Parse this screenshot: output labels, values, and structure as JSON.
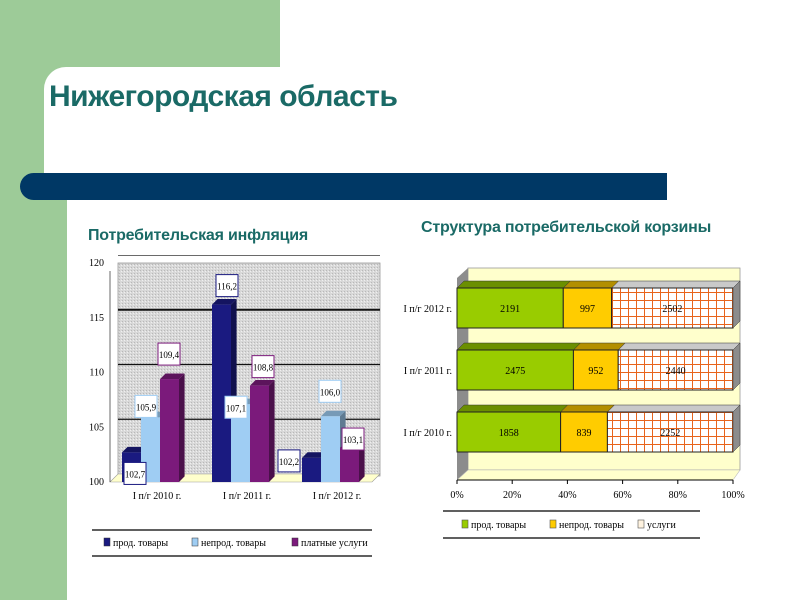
{
  "slide": {
    "title": "Нижегородская область",
    "colors": {
      "sidebar": "#9dcb98",
      "title_text": "#1a6a66",
      "title_bar": "#003865"
    }
  },
  "left_chart": {
    "heading": "Потребительская инфляция"
  },
  "right_chart": {
    "heading": "Структура потребительской корзины"
  },
  "chart_data": [
    {
      "type": "bar",
      "title": "Потребительская инфляция",
      "categories": [
        "I п/г 2010 г.",
        "I п/г 2011 г.",
        "I п/г 2012 г."
      ],
      "series": [
        {
          "name": "прод. товары",
          "color": "#1a1a80",
          "values": [
            102.7,
            116.2,
            102.2
          ],
          "labels": [
            "102,7",
            "116,2",
            "102,2"
          ]
        },
        {
          "name": "непрод. товары",
          "color": "#9fcdf3",
          "values": [
            105.9,
            107.1,
            106.0
          ],
          "labels": [
            "105,9",
            "107,1",
            "106,0"
          ]
        },
        {
          "name": "платные услуги",
          "color": "#7b1a7b",
          "values": [
            109.4,
            108.8,
            103.1
          ],
          "labels": [
            "109,4",
            "108,8",
            "103,1"
          ]
        }
      ],
      "yticks": [
        "100",
        "105",
        "110",
        "115",
        "120"
      ],
      "ylim": [
        100,
        120
      ],
      "xlabel": "",
      "ylabel": "",
      "grid": true,
      "legend_position": "bottom",
      "style": "3d-clustered"
    },
    {
      "type": "bar",
      "orientation": "horizontal",
      "stacked": "percent",
      "title": "Структура потребительской корзины",
      "categories": [
        "I п/г 2012 г.",
        "I п/г 2011 г.",
        "I п/г 2010 г."
      ],
      "series": [
        {
          "name": "прод. товары",
          "color": "#99cc00",
          "values": [
            2191,
            2475,
            1858
          ]
        },
        {
          "name": "непрод. товары",
          "color": "#ffcc00",
          "values": [
            997,
            952,
            839
          ]
        },
        {
          "name": "услуги",
          "color": "#ffffff",
          "pattern": "grid",
          "pattern_color": "#e8641c",
          "values": [
            2502,
            2440,
            2252
          ]
        }
      ],
      "xticks": [
        "0%",
        "20%",
        "40%",
        "60%",
        "80%",
        "100%"
      ],
      "xlim": [
        0,
        100
      ],
      "xlabel": "",
      "ylabel": "",
      "legend_position": "bottom",
      "style": "3d-stacked-100"
    }
  ]
}
